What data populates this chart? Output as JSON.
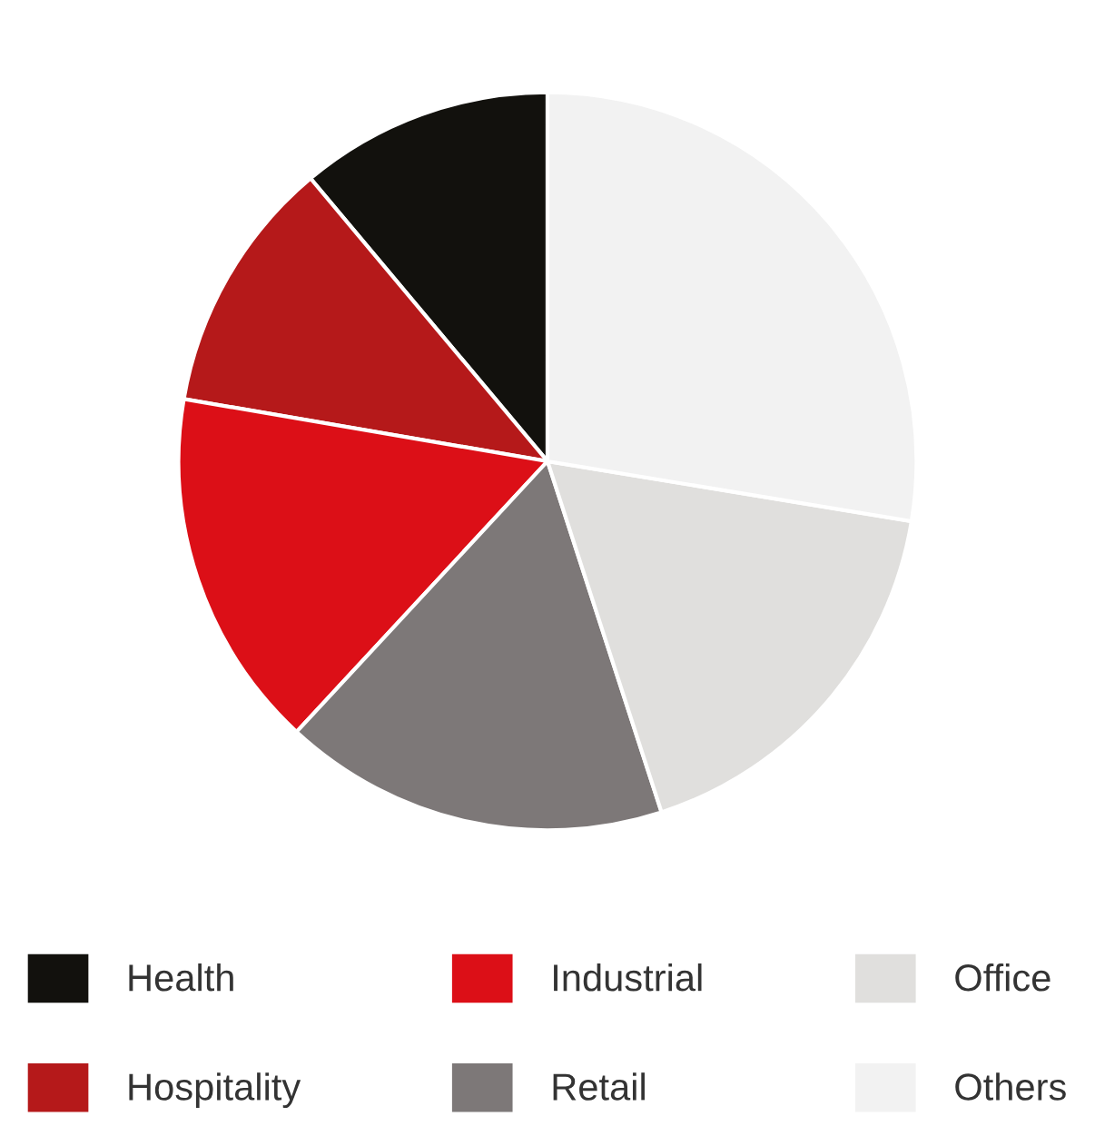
{
  "chart_data": {
    "type": "pie",
    "categories": [
      "Health",
      "Hospitality",
      "Industrial",
      "Retail",
      "Office",
      "Others"
    ],
    "values": [
      11.1,
      11.2,
      15.8,
      16.9,
      17.4,
      27.6
    ],
    "colors": [
      "#12110d",
      "#b5191a",
      "#dc0f17",
      "#7d7878",
      "#e0dfdd",
      "#f2f2f2"
    ],
    "legend": "bottom"
  }
}
